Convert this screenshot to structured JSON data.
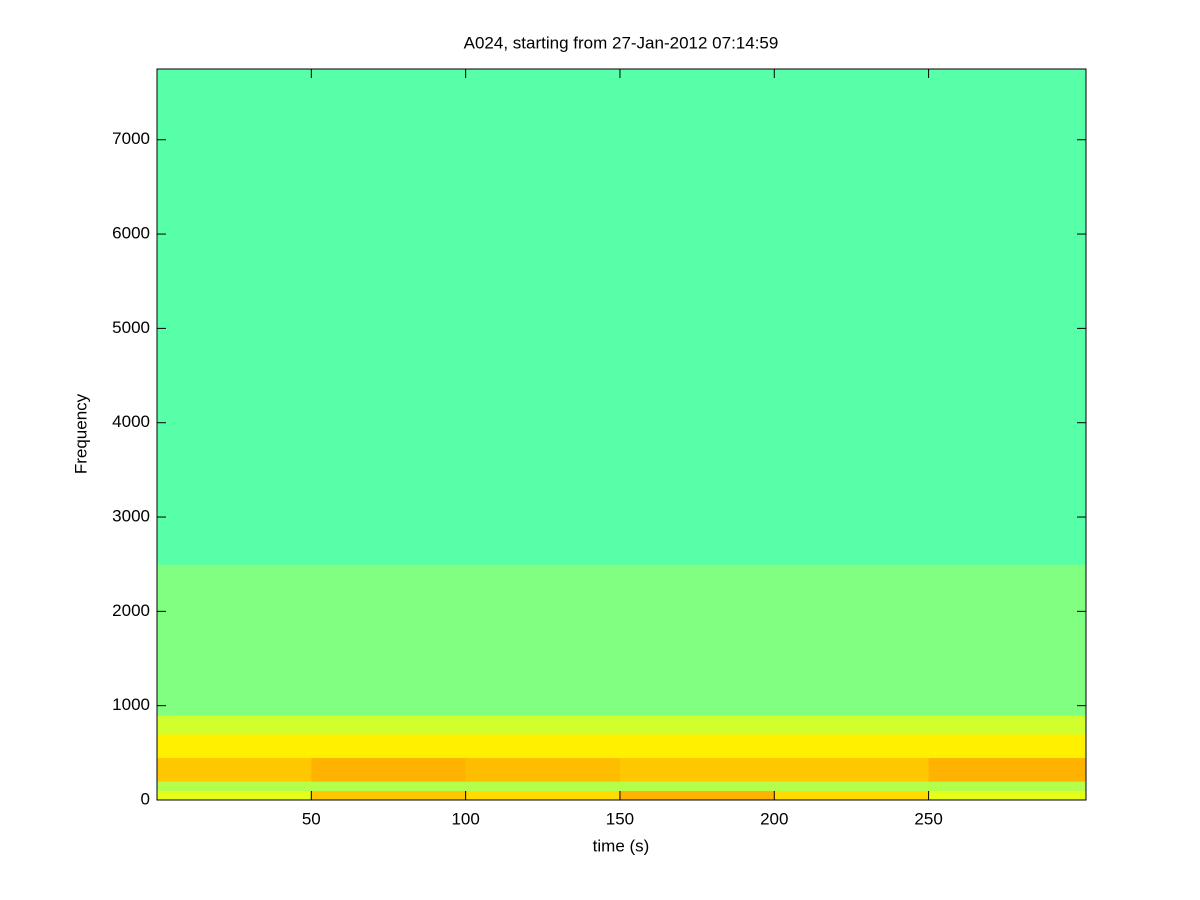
{
  "chart_data": {
    "type": "heatmap",
    "title": "A024, starting from 27-Jan-2012 07:14:59",
    "x_label": "time (s)",
    "y_label": "Frequency",
    "colormap": "jet",
    "x_bins": [
      0,
      50,
      100,
      150,
      200,
      250,
      301
    ],
    "y_bins": [
      0,
      100,
      200,
      450,
      700,
      900,
      2500,
      7750
    ],
    "values": [
      [
        0.6,
        0.68,
        0.66,
        0.7,
        0.66,
        0.6
      ],
      [
        0.55,
        0.55,
        0.55,
        0.55,
        0.55,
        0.55
      ],
      [
        0.68,
        0.7,
        0.69,
        0.68,
        0.68,
        0.7
      ],
      [
        0.64,
        0.64,
        0.64,
        0.64,
        0.64,
        0.64
      ],
      [
        0.58,
        0.58,
        0.58,
        0.58,
        0.58,
        0.58
      ],
      [
        0.5,
        0.5,
        0.5,
        0.5,
        0.5,
        0.5
      ],
      [
        0.46,
        0.46,
        0.46,
        0.46,
        0.46,
        0.46
      ]
    ],
    "xlim": [
      0,
      301
    ],
    "ylim": [
      0,
      7750
    ],
    "xticks": [
      50,
      100,
      150,
      200,
      250
    ],
    "yticks": [
      0,
      1000,
      2000,
      3000,
      4000,
      5000,
      6000,
      7000
    ]
  }
}
